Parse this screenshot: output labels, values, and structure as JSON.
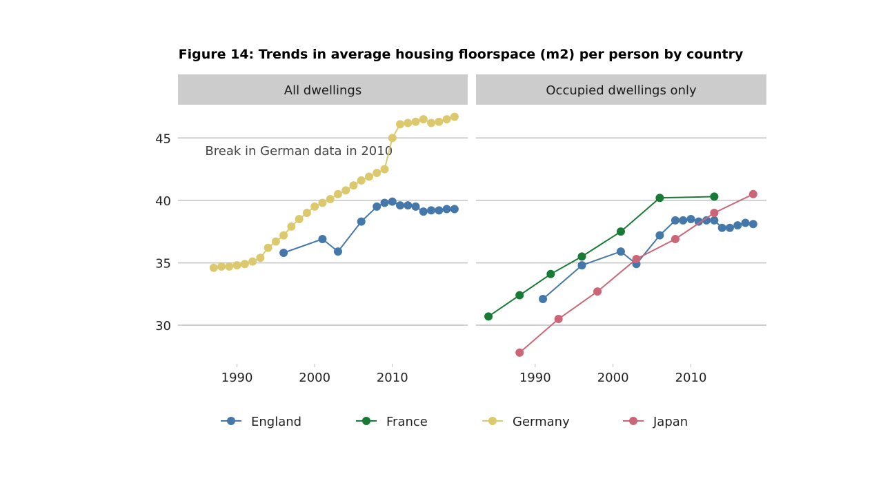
{
  "chart_data": {
    "type": "line",
    "title": "Figure 14: Trends in average housing floorspace (m2) per person by country",
    "xlabel": "",
    "ylabel": "",
    "xlim": [
      1982.4,
      2019.7
    ],
    "ylim": [
      26.8,
      47.5
    ],
    "x_ticks": [
      1990,
      2000,
      2010
    ],
    "y_ticks": [
      30,
      35,
      40,
      45
    ],
    "grid": "horizontal",
    "legend_position": "bottom",
    "colors": {
      "England": "#4477aa",
      "France": "#177a35",
      "Germany": "#dcc96e",
      "Japan": "#cc6677"
    },
    "legend": [
      "England",
      "France",
      "Germany",
      "Japan"
    ],
    "panels": [
      {
        "title": "All dwellings",
        "annotation": "Break in German data in 2010",
        "series": [
          {
            "name": "Germany",
            "x": [
              1987,
              1988,
              1989,
              1990,
              1991,
              1992,
              1993,
              1994,
              1995,
              1996,
              1997,
              1998,
              1999,
              2000,
              2001,
              2002,
              2003,
              2004,
              2005,
              2006,
              2007,
              2008,
              2009,
              2010,
              2011,
              2012,
              2013,
              2014,
              2015,
              2016,
              2017,
              2018
            ],
            "y": [
              34.6,
              34.7,
              34.7,
              34.8,
              34.9,
              35.1,
              35.4,
              36.2,
              36.7,
              37.2,
              37.9,
              38.5,
              39.0,
              39.5,
              39.8,
              40.1,
              40.5,
              40.8,
              41.2,
              41.6,
              41.9,
              42.2,
              42.5,
              45.0,
              46.1,
              46.2,
              46.3,
              46.5,
              46.2,
              46.3,
              46.5,
              46.7
            ]
          },
          {
            "name": "England",
            "x": [
              1996,
              2001,
              2003,
              2006,
              2008,
              2009,
              2010,
              2011,
              2012,
              2013,
              2014,
              2015,
              2016,
              2017,
              2018
            ],
            "y": [
              35.8,
              36.9,
              35.9,
              38.3,
              39.5,
              39.8,
              39.9,
              39.6,
              39.6,
              39.5,
              39.1,
              39.2,
              39.2,
              39.3,
              39.3
            ]
          }
        ]
      },
      {
        "title": "Occupied dwellings only",
        "series": [
          {
            "name": "France",
            "x": [
              1984,
              1988,
              1992,
              1996,
              2001,
              2006,
              2013
            ],
            "y": [
              30.7,
              32.4,
              34.1,
              35.5,
              37.5,
              40.2,
              40.3
            ]
          },
          {
            "name": "England",
            "x": [
              1991,
              1996,
              2001,
              2003,
              2006,
              2008,
              2009,
              2010,
              2011,
              2012,
              2013,
              2014,
              2015,
              2016,
              2017,
              2018
            ],
            "y": [
              32.1,
              34.8,
              35.9,
              34.9,
              37.2,
              38.4,
              38.4,
              38.5,
              38.3,
              38.4,
              38.4,
              37.8,
              37.8,
              38.0,
              38.2,
              38.1
            ]
          },
          {
            "name": "Japan",
            "x": [
              1988,
              1993,
              1998,
              2003,
              2008,
              2013,
              2018
            ],
            "y": [
              27.8,
              30.5,
              32.7,
              35.3,
              36.9,
              39.0,
              40.5
            ]
          }
        ]
      }
    ]
  }
}
